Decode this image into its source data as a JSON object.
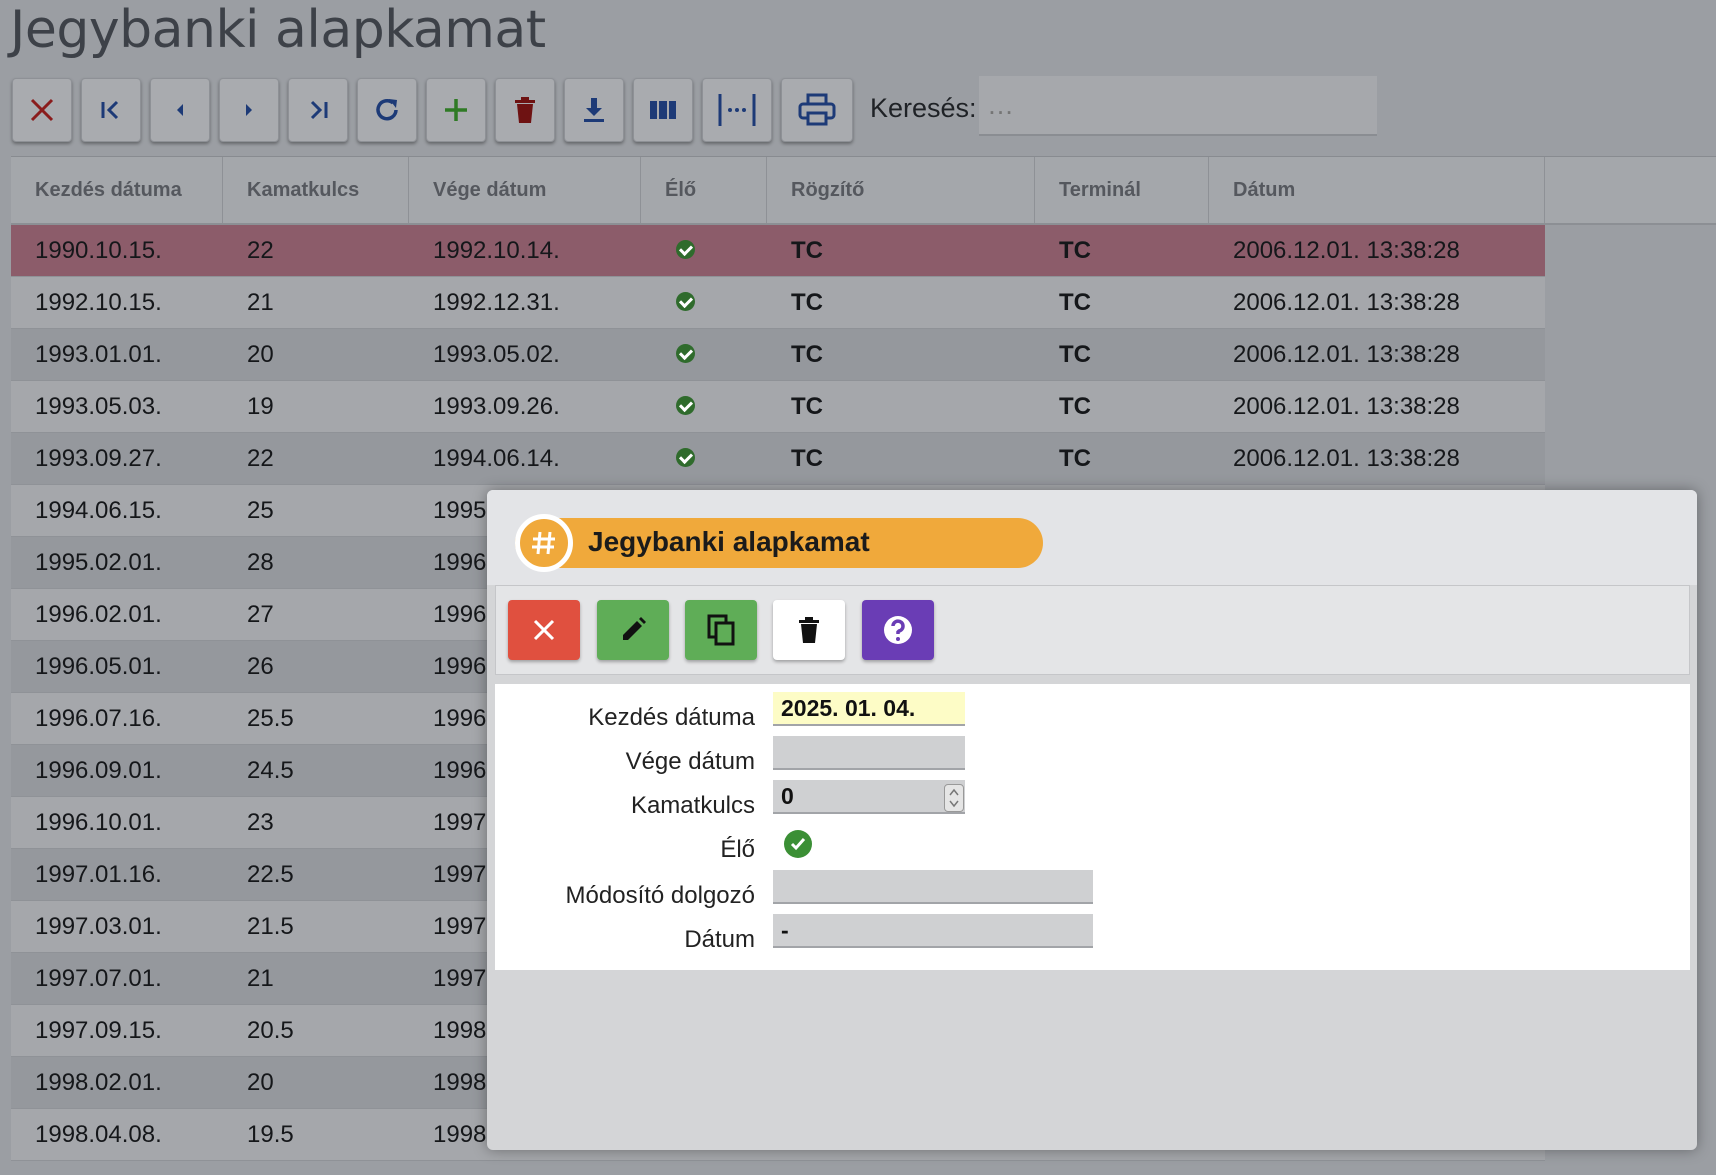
{
  "page": {
    "title": "Jegybanki alapkamat"
  },
  "toolbar": {
    "buttons": [
      {
        "name": "close",
        "icon": "close-icon"
      },
      {
        "name": "first",
        "icon": "first-page-icon"
      },
      {
        "name": "prev",
        "icon": "chevron-left-icon"
      },
      {
        "name": "next",
        "icon": "chevron-right-icon"
      },
      {
        "name": "last",
        "icon": "last-page-icon"
      },
      {
        "name": "refresh",
        "icon": "refresh-icon"
      },
      {
        "name": "add",
        "icon": "plus-icon"
      },
      {
        "name": "delete",
        "icon": "trash-icon"
      },
      {
        "name": "download",
        "icon": "download-icon"
      },
      {
        "name": "columns",
        "icon": "columns-icon"
      },
      {
        "name": "fit-width",
        "icon": "fit-width-icon"
      },
      {
        "name": "print",
        "icon": "print-icon"
      }
    ],
    "search_label": "Keresés:",
    "search_placeholder": "…"
  },
  "grid": {
    "columns": [
      "Kezdés dátuma",
      "Kamatkulcs",
      "Vége dátum",
      "Élő",
      "Rögzítő",
      "Terminál",
      "Dátum"
    ],
    "rows": [
      [
        "1990.10.15.",
        "22",
        "1992.10.14.",
        "ok",
        "TC",
        "TC",
        "2006.12.01. 13:38:28"
      ],
      [
        "1992.10.15.",
        "21",
        "1992.12.31.",
        "ok",
        "TC",
        "TC",
        "2006.12.01. 13:38:28"
      ],
      [
        "1993.01.01.",
        "20",
        "1993.05.02.",
        "ok",
        "TC",
        "TC",
        "2006.12.01. 13:38:28"
      ],
      [
        "1993.05.03.",
        "19",
        "1993.09.26.",
        "ok",
        "TC",
        "TC",
        "2006.12.01. 13:38:28"
      ],
      [
        "1993.09.27.",
        "22",
        "1994.06.14.",
        "ok",
        "TC",
        "TC",
        "2006.12.01. 13:38:28"
      ],
      [
        "1994.06.15.",
        "25",
        "1995",
        "",
        "",
        "",
        ""
      ],
      [
        "1995.02.01.",
        "28",
        "1996",
        "",
        "",
        "",
        ""
      ],
      [
        "1996.02.01.",
        "27",
        "1996",
        "",
        "",
        "",
        ""
      ],
      [
        "1996.05.01.",
        "26",
        "1996",
        "",
        "",
        "",
        ""
      ],
      [
        "1996.07.16.",
        "25.5",
        "1996",
        "",
        "",
        "",
        ""
      ],
      [
        "1996.09.01.",
        "24.5",
        "1996",
        "",
        "",
        "",
        ""
      ],
      [
        "1996.10.01.",
        "23",
        "1997",
        "",
        "",
        "",
        ""
      ],
      [
        "1997.01.16.",
        "22.5",
        "1997",
        "",
        "",
        "",
        ""
      ],
      [
        "1997.03.01.",
        "21.5",
        "1997",
        "",
        "",
        "",
        ""
      ],
      [
        "1997.07.01.",
        "21",
        "1997",
        "",
        "",
        "",
        ""
      ],
      [
        "1997.09.15.",
        "20.5",
        "1998",
        "",
        "",
        "",
        ""
      ],
      [
        "1998.02.01.",
        "20",
        "1998",
        "",
        "",
        "",
        ""
      ],
      [
        "1998.04.08.",
        "19.5",
        "1998",
        "",
        "",
        "",
        ""
      ]
    ],
    "selected_row": 0
  },
  "dialog": {
    "title": "Jegybanki alapkamat",
    "title_icon": "hash-icon",
    "buttons": [
      {
        "name": "close",
        "icon": "close-icon",
        "color": "#e0503f"
      },
      {
        "name": "edit",
        "icon": "pencil-icon",
        "color": "#5fad57"
      },
      {
        "name": "copy",
        "icon": "copy-icon",
        "color": "#5fad57"
      },
      {
        "name": "delete",
        "icon": "trash-icon",
        "color": "#ffffff"
      },
      {
        "name": "help",
        "icon": "help-icon",
        "color": "#6a3db5"
      }
    ],
    "form": {
      "start_date_label": "Kezdés dátuma",
      "start_date_value": "2025. 01. 04.",
      "end_date_label": "Vége dátum",
      "end_date_value": "",
      "rate_label": "Kamatkulcs",
      "rate_value": "0",
      "live_label": "Élő",
      "live_checked": true,
      "modifier_label": "Módosító dolgozó",
      "modifier_value": "",
      "date_label": "Dátum",
      "date_value": "-"
    }
  },
  "colors": {
    "selected_row": "#8c5c6a",
    "accent_orange": "#f0a93b",
    "ok_green": "#2f6b2c"
  }
}
